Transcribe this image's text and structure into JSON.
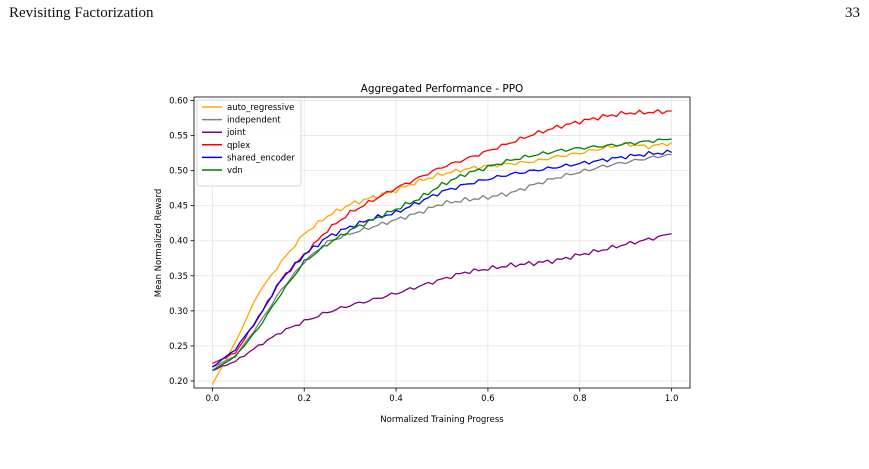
{
  "header": {
    "title": "Revisiting Factorization",
    "page_number": "33"
  },
  "chart_data": {
    "type": "line",
    "title": "Aggregated Performance - PPO",
    "xlabel": "Normalized Training Progress",
    "ylabel": "Mean Normalized Reward",
    "xlim": [
      -0.04,
      1.04
    ],
    "ylim": [
      0.19,
      0.605
    ],
    "xticks": [
      0.0,
      0.2,
      0.4,
      0.6,
      0.8,
      1.0
    ],
    "xtick_labels": [
      "0.0",
      "0.2",
      "0.4",
      "0.6",
      "0.8",
      "1.0"
    ],
    "yticks": [
      0.2,
      0.25,
      0.3,
      0.35,
      0.4,
      0.45,
      0.5,
      0.55,
      0.6
    ],
    "ytick_labels": [
      "0.20",
      "0.25",
      "0.30",
      "0.35",
      "0.40",
      "0.45",
      "0.50",
      "0.55",
      "0.60"
    ],
    "grid": true,
    "legend_position": "top-left",
    "x": [
      0.0,
      0.05,
      0.1,
      0.15,
      0.2,
      0.25,
      0.3,
      0.35,
      0.4,
      0.45,
      0.5,
      0.55,
      0.6,
      0.65,
      0.7,
      0.75,
      0.8,
      0.85,
      0.9,
      0.95,
      1.0
    ],
    "series": [
      {
        "name": "auto_regressive",
        "color": "#ffa500",
        "values": [
          0.195,
          0.255,
          0.325,
          0.37,
          0.41,
          0.435,
          0.452,
          0.462,
          0.472,
          0.485,
          0.495,
          0.502,
          0.507,
          0.51,
          0.513,
          0.52,
          0.525,
          0.532,
          0.538,
          0.534,
          0.54
        ]
      },
      {
        "name": "independent",
        "color": "#808080",
        "values": [
          0.22,
          0.235,
          0.28,
          0.33,
          0.37,
          0.398,
          0.41,
          0.42,
          0.43,
          0.44,
          0.453,
          0.458,
          0.462,
          0.468,
          0.48,
          0.49,
          0.498,
          0.506,
          0.512,
          0.518,
          0.523
        ]
      },
      {
        "name": "joint",
        "color": "#800080",
        "values": [
          0.215,
          0.228,
          0.25,
          0.27,
          0.285,
          0.298,
          0.308,
          0.316,
          0.325,
          0.335,
          0.345,
          0.355,
          0.36,
          0.365,
          0.368,
          0.372,
          0.38,
          0.387,
          0.395,
          0.402,
          0.41
        ]
      },
      {
        "name": "qplex",
        "color": "#ff0000",
        "values": [
          0.225,
          0.24,
          0.29,
          0.345,
          0.38,
          0.415,
          0.44,
          0.458,
          0.475,
          0.49,
          0.505,
          0.516,
          0.528,
          0.54,
          0.552,
          0.562,
          0.57,
          0.577,
          0.582,
          0.583,
          0.585
        ]
      },
      {
        "name": "shared_encoder",
        "color": "#0000ff",
        "values": [
          0.22,
          0.245,
          0.29,
          0.345,
          0.38,
          0.405,
          0.42,
          0.432,
          0.44,
          0.455,
          0.47,
          0.48,
          0.488,
          0.495,
          0.5,
          0.505,
          0.51,
          0.515,
          0.52,
          0.524,
          0.526
        ]
      },
      {
        "name": "vdn",
        "color": "#008000",
        "values": [
          0.215,
          0.235,
          0.275,
          0.325,
          0.37,
          0.395,
          0.415,
          0.43,
          0.445,
          0.46,
          0.48,
          0.495,
          0.505,
          0.515,
          0.522,
          0.528,
          0.532,
          0.535,
          0.538,
          0.542,
          0.545
        ]
      }
    ]
  }
}
